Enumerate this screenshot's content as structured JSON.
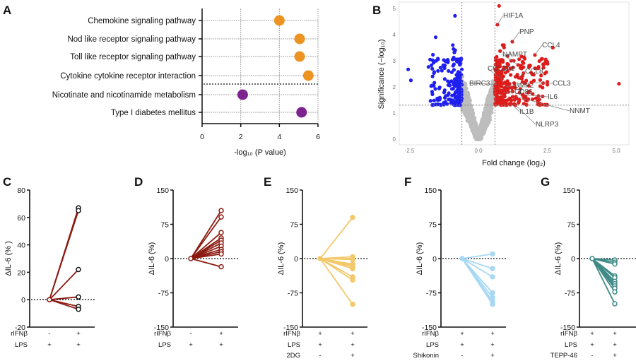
{
  "panels": {
    "A": "A",
    "B": "B",
    "C": "C",
    "D": "D",
    "E": "E",
    "F": "F",
    "G": "G"
  },
  "chart_data": [
    {
      "id": "A",
      "type": "scatter",
      "categories": [
        "Chemokine signaling pathway",
        "Nod like receptor signaling pathway",
        "Toll like receptor signaling pathway",
        "Cytokine cytokine receptor interaction",
        "Nicotinate and nicotinamide metabolism",
        "Type I diabetes mellitus"
      ],
      "values": [
        4.0,
        5.05,
        5.05,
        5.5,
        2.1,
        5.15
      ],
      "colors": [
        "#ec9322",
        "#ec9322",
        "#ec9322",
        "#ec9322",
        "#7d2390",
        "#7d2390"
      ],
      "xlabel": "-log₁₀ (P value)",
      "xlim": [
        0,
        6
      ],
      "xticks": [
        "0",
        "2",
        "4",
        "6"
      ],
      "grid": true
    },
    {
      "id": "B",
      "type": "scatter",
      "xlabel": "Fold change (log₂)",
      "ylabel": "Significance (−log₁₀)",
      "xlim": [
        -2.9,
        5.2
      ],
      "ylim": [
        -0.2,
        5.3
      ],
      "xticks": [
        "-2.5",
        "0.0",
        "2.5",
        "5.0"
      ],
      "yticks": [
        "0",
        "1",
        "2",
        "3",
        "4",
        "5"
      ],
      "thresholds": {
        "fold_change": 0.6,
        "significance": 1.3
      },
      "colors": {
        "up": "#dd1c1c",
        "down": "#1f1fef",
        "ns": "#bdbdbd"
      },
      "labeled_genes": [
        {
          "gene": "HIF1A",
          "x": 0.69,
          "y": 4.38
        },
        {
          "gene": "PNP",
          "x": 1.23,
          "y": 3.73
        },
        {
          "gene": "CCL4",
          "x": 2.05,
          "y": 3.22
        },
        {
          "gene": "NAMPT",
          "x": 1.44,
          "y": 2.84
        },
        {
          "gene": "COL1A1",
          "x": 0.85,
          "y": 2.3
        },
        {
          "gene": "CCL8",
          "x": 1.46,
          "y": 2.35
        },
        {
          "gene": "BIRC3",
          "x": 0.67,
          "y": 2.1
        },
        {
          "gene": "BMP2",
          "x": 1.0,
          "y": 2.0
        },
        {
          "gene": "CCL3",
          "x": 1.92,
          "y": 2.17
        },
        {
          "gene": "CD86",
          "x": 0.9,
          "y": 1.8
        },
        {
          "gene": "IL6",
          "x": 1.62,
          "y": 1.7
        },
        {
          "gene": "IL1B",
          "x": 1.18,
          "y": 1.36
        },
        {
          "gene": "NNMT",
          "x": 1.36,
          "y": 1.63
        },
        {
          "gene": "NLRP3",
          "x": 1.3,
          "y": 1.35
        }
      ],
      "outliers": [
        {
          "x": 5.1,
          "y": 2.12
        },
        {
          "x": 2.7,
          "y": 3.5
        },
        {
          "x": 0.75,
          "y": 5.1
        },
        {
          "x": -0.85,
          "y": 4.72
        },
        {
          "x": -1.55,
          "y": 3.9
        },
        {
          "x": -2.55,
          "y": 2.67
        },
        {
          "x": -2.45,
          "y": 2.25
        },
        {
          "x": -1.65,
          "y": 3.23
        }
      ]
    },
    {
      "id": "C",
      "type": "line",
      "ylabel": "ΔIL-6 (% )",
      "ylim": [
        -20,
        80
      ],
      "yticks": [
        "80",
        "60",
        "40",
        "20",
        "0",
        "-20"
      ],
      "conditions": [
        {
          "label": "rIFNβ",
          "marks": [
            "-",
            "+"
          ]
        },
        {
          "label": "LPS",
          "marks": [
            "+",
            "+"
          ]
        }
      ],
      "series": [
        67,
        65,
        22,
        2,
        -5,
        -7
      ],
      "line_color": "#8b1a10",
      "marker_color": "#111111",
      "marker": "open"
    },
    {
      "id": "D",
      "type": "line",
      "ylabel": "ΔIL-6 (%)",
      "ylim": [
        -150,
        150
      ],
      "yticks": [
        "150",
        "75",
        "0",
        "-75",
        "-150"
      ],
      "conditions": [
        {
          "label": "rIFNβ",
          "marks": [
            "-",
            "+"
          ]
        },
        {
          "label": "LPS",
          "marks": [
            "+",
            "+"
          ]
        }
      ],
      "series": [
        105,
        91,
        57,
        45,
        40,
        34,
        27,
        20,
        15,
        10,
        -18
      ],
      "line_color": "#8b1a10",
      "marker_color": "#8b1a10",
      "marker": "open"
    },
    {
      "id": "E",
      "type": "line",
      "ylabel": "ΔIL-6 (%)",
      "ylim": [
        -150,
        150
      ],
      "yticks": [
        "150",
        "75",
        "0",
        "-75",
        "-150"
      ],
      "conditions": [
        {
          "label": "rIFNβ",
          "marks": [
            "+",
            "+"
          ]
        },
        {
          "label": "LPS",
          "marks": [
            "+",
            "+"
          ]
        },
        {
          "label": "2DG",
          "marks": [
            "-",
            "+"
          ]
        }
      ],
      "series": [
        90,
        4,
        0,
        -2,
        -12,
        -15,
        -18,
        -22,
        -40,
        -47,
        -100
      ],
      "line_color": "#f2c96b",
      "marker_color": "#f2c96b",
      "marker": "filled"
    },
    {
      "id": "F",
      "type": "line",
      "ylabel": "ΔIL-6 (%)",
      "ylim": [
        -150,
        150
      ],
      "yticks": [
        "150",
        "75",
        "0",
        "-75",
        "-150"
      ],
      "conditions": [
        {
          "label": "rIFNβ",
          "marks": [
            "+",
            "+"
          ]
        },
        {
          "label": "LPS",
          "marks": [
            "+",
            "+"
          ]
        },
        {
          "label": "Shikonin",
          "marks": [
            "-",
            "+"
          ]
        }
      ],
      "series": [
        10,
        -22,
        -40,
        -75,
        -85,
        -93,
        -98,
        -100
      ],
      "line_color": "#a8d8f5",
      "marker_color": "#a8d8f5",
      "marker": "filled"
    },
    {
      "id": "G",
      "type": "line",
      "ylabel": "ΔIL-6 (%)",
      "ylim": [
        -150,
        150
      ],
      "yticks": [
        "150",
        "75",
        "0",
        "-75",
        "-150"
      ],
      "conditions": [
        {
          "label": "rIFNβ",
          "marks": [
            "+",
            "+"
          ]
        },
        {
          "label": "LPS",
          "marks": [
            "+",
            "+"
          ]
        },
        {
          "label": "TEPP-46",
          "marks": [
            "-",
            "+"
          ]
        }
      ],
      "series": [
        -3,
        -8,
        -12,
        -38,
        -42,
        -50,
        -55,
        -60,
        -65,
        -73,
        -99
      ],
      "line_color": "#3d8a87",
      "marker_color": "#3d8a87",
      "marker": "open"
    }
  ]
}
